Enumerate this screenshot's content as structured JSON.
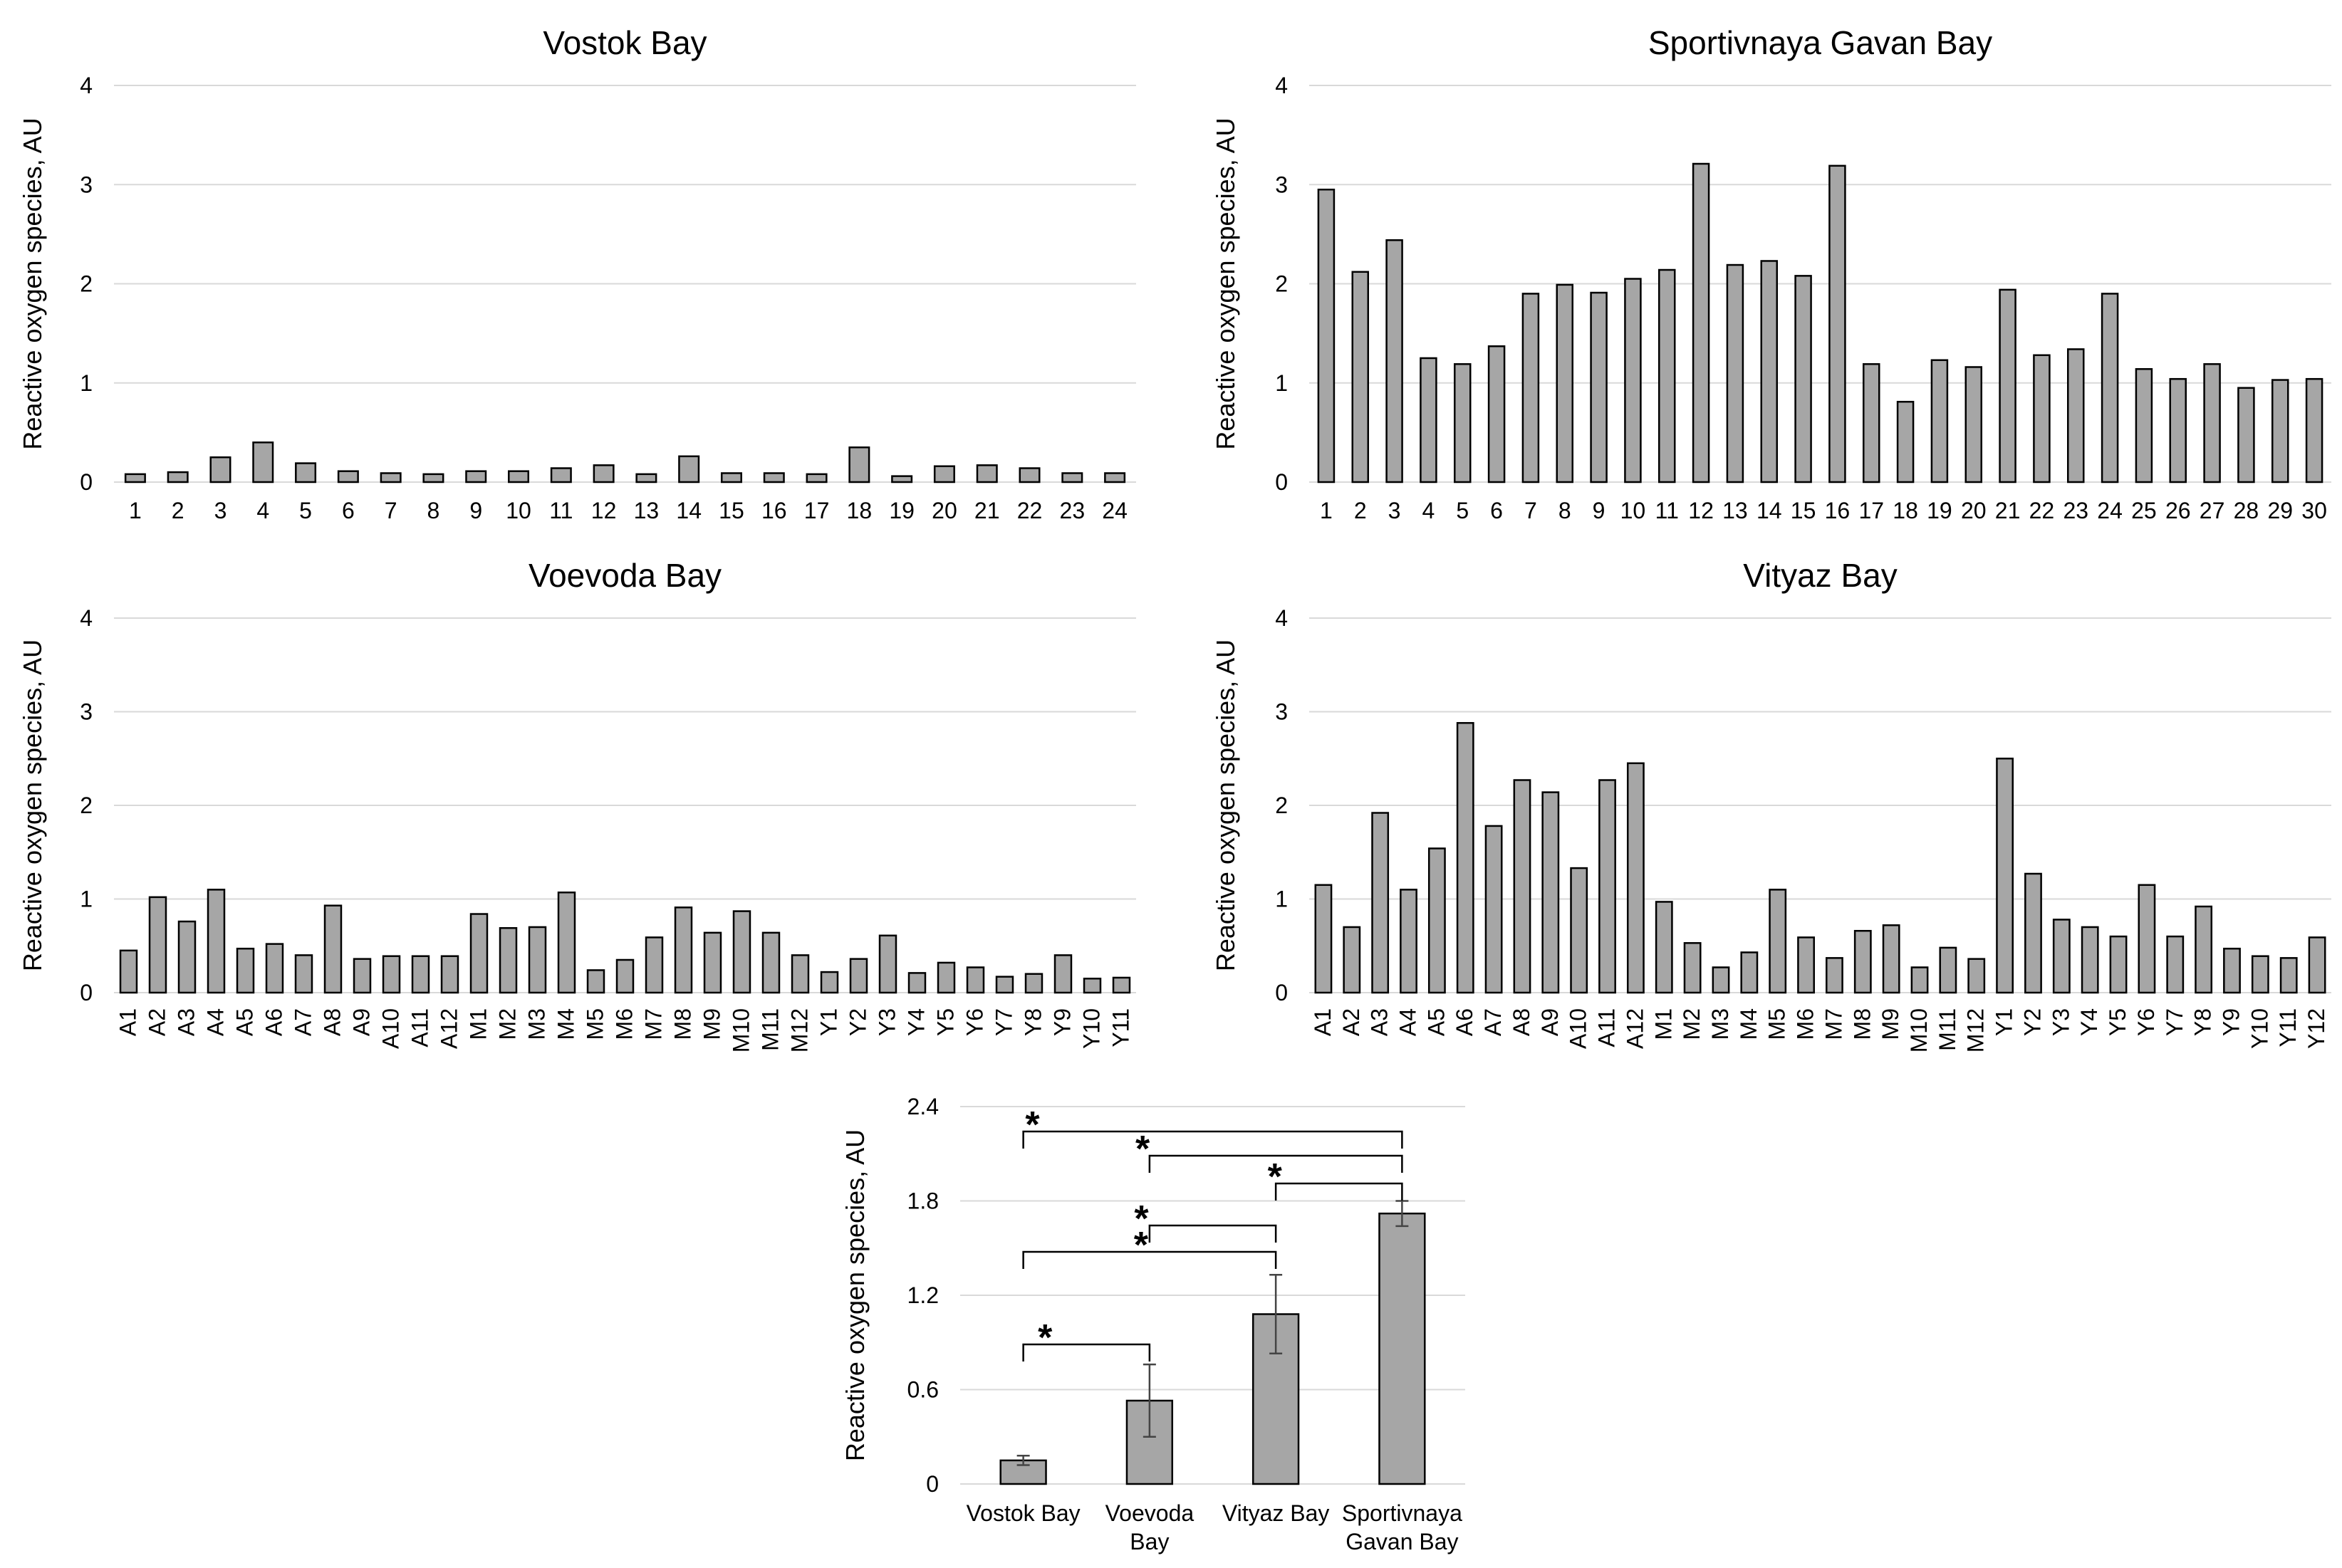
{
  "chart_data": [
    {
      "type": "bar",
      "title": "Vostok Bay",
      "ylabel": "Reactive oxygen species, AU",
      "ylim": [
        0,
        4
      ],
      "yticks": [
        "0",
        "1",
        "2",
        "3",
        "4"
      ],
      "categories": [
        "1",
        "2",
        "3",
        "4",
        "5",
        "6",
        "7",
        "8",
        "9",
        "10",
        "11",
        "12",
        "13",
        "14",
        "15",
        "16",
        "17",
        "18",
        "19",
        "20",
        "21",
        "22",
        "23",
        "24"
      ],
      "values": [
        0.08,
        0.1,
        0.25,
        0.4,
        0.19,
        0.11,
        0.09,
        0.08,
        0.11,
        0.11,
        0.14,
        0.17,
        0.08,
        0.26,
        0.09,
        0.09,
        0.08,
        0.35,
        0.06,
        0.16,
        0.17,
        0.14,
        0.09,
        0.09
      ]
    },
    {
      "type": "bar",
      "title": "Sportivnaya Gavan Bay",
      "ylabel": "Reactive oxygen species, AU",
      "ylim": [
        0,
        4
      ],
      "yticks": [
        "0",
        "1",
        "2",
        "3",
        "4"
      ],
      "categories": [
        "1",
        "2",
        "3",
        "4",
        "5",
        "6",
        "7",
        "8",
        "9",
        "10",
        "11",
        "12",
        "13",
        "14",
        "15",
        "16",
        "17",
        "18",
        "19",
        "20",
        "21",
        "22",
        "23",
        "24",
        "25",
        "26",
        "27",
        "28",
        "29",
        "30"
      ],
      "values": [
        2.95,
        2.12,
        2.44,
        1.25,
        1.19,
        1.37,
        1.9,
        1.99,
        1.91,
        2.05,
        2.14,
        3.21,
        2.19,
        2.23,
        2.08,
        3.19,
        1.19,
        0.81,
        1.23,
        1.16,
        1.94,
        1.28,
        1.34,
        1.9,
        1.14,
        1.04,
        1.19,
        0.95,
        1.03,
        1.04
      ]
    },
    {
      "type": "bar",
      "title": "Voevoda Bay",
      "ylabel": "Reactive oxygen species, AU",
      "ylim": [
        0,
        4
      ],
      "yticks": [
        "0",
        "1",
        "2",
        "3",
        "4"
      ],
      "categories": [
        "A1",
        "A2",
        "A3",
        "A4",
        "A5",
        "A6",
        "A7",
        "A8",
        "A9",
        "A10",
        "A11",
        "A12",
        "M1",
        "M2",
        "M3",
        "M4",
        "M5",
        "M6",
        "M7",
        "M8",
        "M9",
        "M10",
        "M11",
        "M12",
        "Y1",
        "Y2",
        "Y3",
        "Y4",
        "Y5",
        "Y6",
        "Y7",
        "Y8",
        "Y9",
        "Y10",
        "Y11"
      ],
      "values": [
        0.45,
        1.02,
        0.76,
        1.1,
        0.47,
        0.52,
        0.4,
        0.93,
        0.36,
        0.39,
        0.39,
        0.39,
        0.84,
        0.69,
        0.7,
        1.07,
        0.24,
        0.35,
        0.59,
        0.91,
        0.64,
        0.87,
        0.64,
        0.4,
        0.22,
        0.36,
        0.61,
        0.21,
        0.32,
        0.27,
        0.17,
        0.2,
        0.4,
        0.15,
        0.16
      ]
    },
    {
      "type": "bar",
      "title": "Vityaz Bay",
      "ylabel": "Reactive oxygen species, AU",
      "ylim": [
        0,
        4
      ],
      "yticks": [
        "0",
        "1",
        "2",
        "3",
        "4"
      ],
      "categories": [
        "A1",
        "A2",
        "A3",
        "A4",
        "A5",
        "A6",
        "A7",
        "A8",
        "A9",
        "A10",
        "A11",
        "A12",
        "M1",
        "M2",
        "M3",
        "M4",
        "M5",
        "M6",
        "M7",
        "M8",
        "M9",
        "M10",
        "M11",
        "M12",
        "Y1",
        "Y2",
        "Y3",
        "Y4",
        "Y5",
        "Y6",
        "Y7",
        "Y8",
        "Y9",
        "Y10",
        "Y11",
        "Y12"
      ],
      "values": [
        1.15,
        0.7,
        1.92,
        1.1,
        1.54,
        2.88,
        1.78,
        2.27,
        2.14,
        1.33,
        2.27,
        2.45,
        0.97,
        0.53,
        0.27,
        0.43,
        1.1,
        0.59,
        0.37,
        0.66,
        0.72,
        0.27,
        0.48,
        0.36,
        2.5,
        1.27,
        0.78,
        0.7,
        0.6,
        1.15,
        0.6,
        0.92,
        0.47,
        0.39,
        0.37,
        0.59
      ]
    },
    {
      "type": "bar",
      "title": "",
      "ylabel": "Reactive oxygen species, AU",
      "ylim": [
        0,
        2.4
      ],
      "yticks": [
        "0",
        "0.6",
        "1.2",
        "1.8",
        "2.4"
      ],
      "categories": [
        [
          "Vostok Bay"
        ],
        [
          "Voevoda",
          "Bay"
        ],
        [
          "Vityaz Bay"
        ],
        [
          "Sportivnaya",
          "Gavan Bay"
        ]
      ],
      "values": [
        0.15,
        0.53,
        1.08,
        1.72
      ],
      "errors": [
        0.03,
        0.23,
        0.25,
        0.08
      ],
      "significance": [
        {
          "from": 0,
          "to": 3,
          "label": "*"
        },
        {
          "from": 1,
          "to": 3,
          "label": "*"
        },
        {
          "from": 2,
          "to": 3,
          "label": "*"
        },
        {
          "from": 1,
          "to": 2,
          "label": "*"
        },
        {
          "from": 0,
          "to": 2,
          "label": "*"
        },
        {
          "from": 0,
          "to": 1,
          "label": "*"
        }
      ]
    }
  ]
}
